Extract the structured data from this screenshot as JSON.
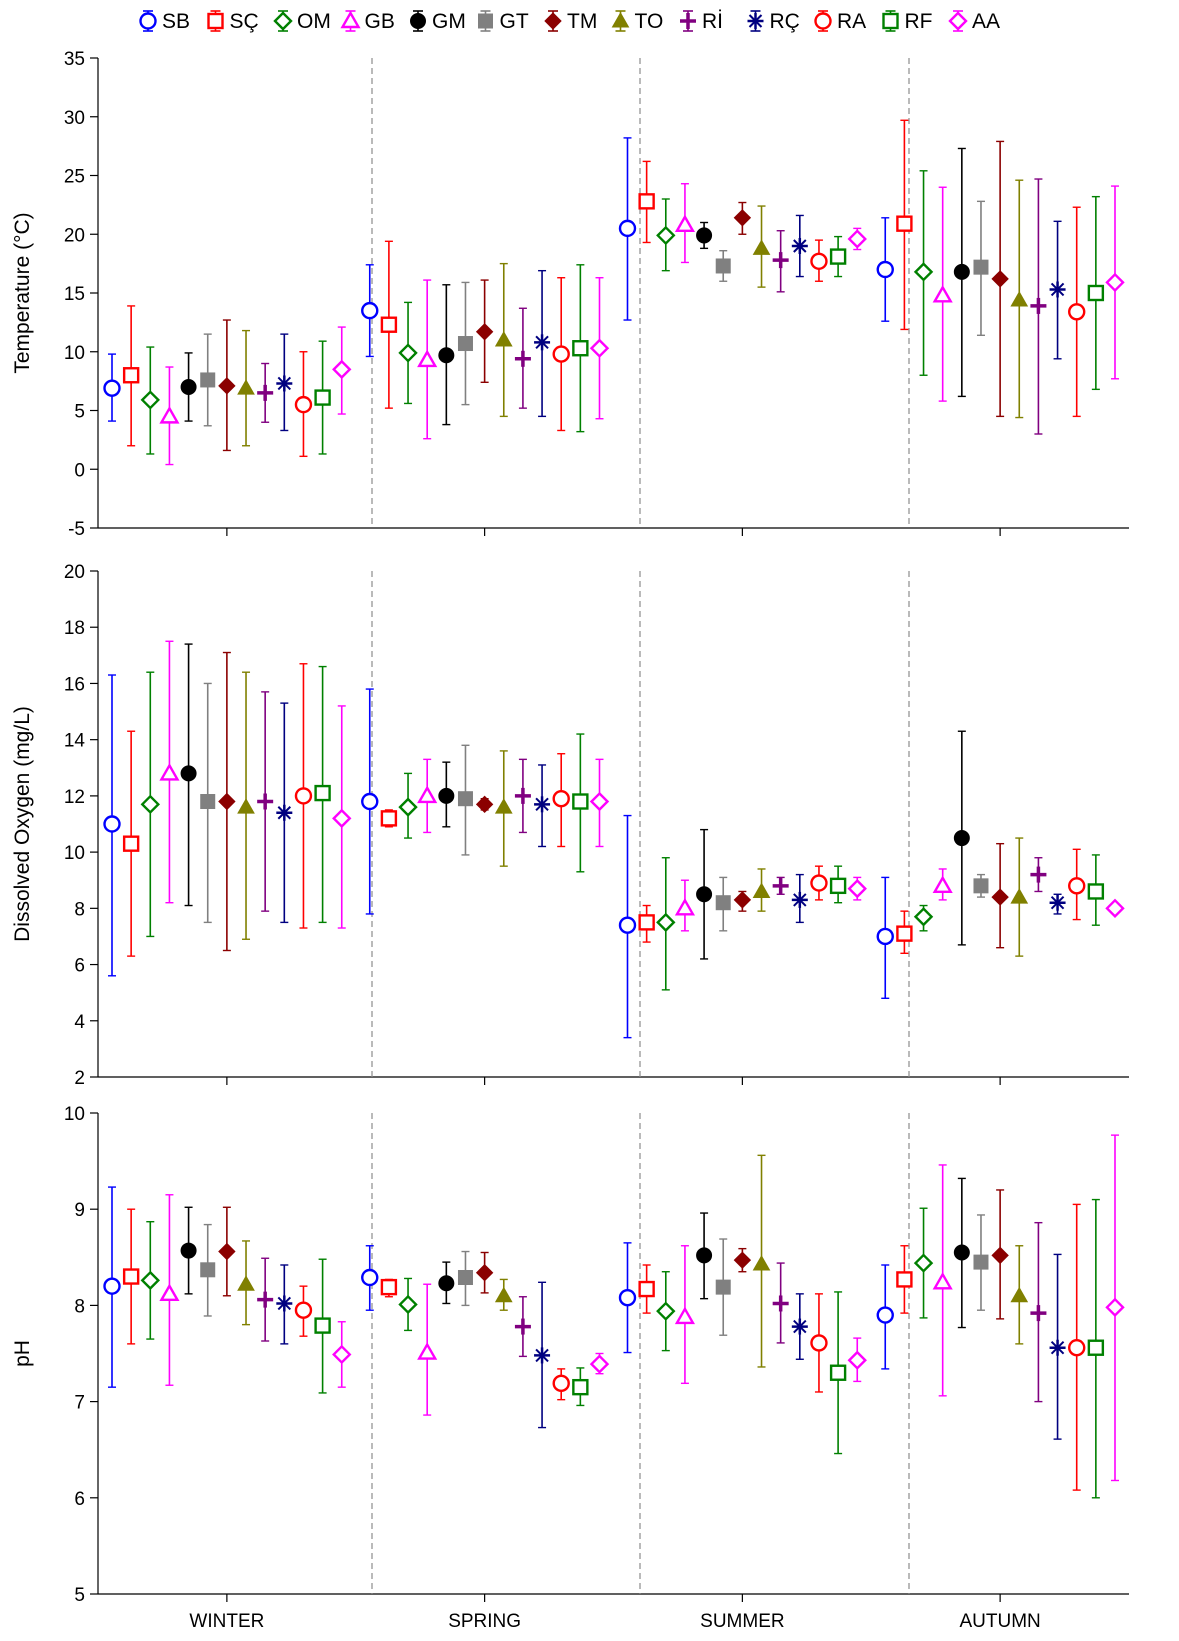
{
  "chart_data": {
    "type": "scatter",
    "subtype": "point-with-error-bars",
    "categories": [
      "WINTER",
      "SPRING",
      "SUMMER",
      "AUTUMN"
    ],
    "legend": {
      "placement": "top",
      "entries": [
        "SB",
        "SÇ",
        "OM",
        "GB",
        "GM",
        "GT",
        "TM",
        "TO",
        "Rİ",
        "RÇ",
        "RA",
        "RF",
        "AA"
      ]
    },
    "grid": false,
    "season_separators": "dashed",
    "series_style": [
      {
        "name": "SB",
        "color": "#0000ff",
        "marker": "circle-open"
      },
      {
        "name": "SÇ",
        "color": "#ff0000",
        "marker": "square-open"
      },
      {
        "name": "OM",
        "color": "#008000",
        "marker": "diamond-open"
      },
      {
        "name": "GB",
        "color": "#ff00ff",
        "marker": "triangle-open"
      },
      {
        "name": "GM",
        "color": "#000000",
        "marker": "circle-filled"
      },
      {
        "name": "GT",
        "color": "#808080",
        "marker": "square-filled"
      },
      {
        "name": "TM",
        "color": "#8b0000",
        "marker": "diamond-filled"
      },
      {
        "name": "TO",
        "color": "#808000",
        "marker": "triangle-filled"
      },
      {
        "name": "Rİ",
        "color": "#800080",
        "marker": "plus"
      },
      {
        "name": "RÇ",
        "color": "#000080",
        "marker": "asterisk"
      },
      {
        "name": "RA",
        "color": "#ff0000",
        "marker": "circle-open"
      },
      {
        "name": "RF",
        "color": "#008000",
        "marker": "square-open"
      },
      {
        "name": "AA",
        "color": "#ff00ff",
        "marker": "diamond-open"
      }
    ],
    "panels": [
      {
        "ylabel": "Temperature (°C)",
        "ylim": [
          -5,
          35
        ],
        "yticks": [
          -5,
          0,
          5,
          10,
          15,
          20,
          25,
          30,
          35
        ],
        "data": [
          [
            [
              6.9,
              4.1,
              9.8
            ],
            [
              13.5,
              9.6,
              17.4
            ],
            [
              20.5,
              12.7,
              28.2
            ],
            [
              17.0,
              12.6,
              21.4
            ]
          ],
          [
            [
              8.0,
              2.0,
              13.9
            ],
            [
              12.3,
              5.2,
              19.4
            ],
            [
              22.8,
              19.3,
              26.2
            ],
            [
              20.9,
              11.9,
              29.7
            ]
          ],
          [
            [
              5.9,
              1.3,
              10.4
            ],
            [
              9.9,
              5.6,
              14.2
            ],
            [
              19.9,
              16.9,
              23.0
            ],
            [
              16.8,
              8.0,
              25.4
            ]
          ],
          [
            [
              4.5,
              0.4,
              8.7
            ],
            [
              9.3,
              2.6,
              16.1
            ],
            [
              20.8,
              17.6,
              24.3
            ],
            [
              14.8,
              5.8,
              24.0
            ]
          ],
          [
            [
              7.0,
              4.1,
              9.9
            ],
            [
              9.7,
              3.8,
              15.7
            ],
            [
              19.9,
              18.8,
              21.0
            ],
            [
              16.8,
              6.2,
              27.3
            ]
          ],
          [
            [
              7.6,
              3.7,
              11.5
            ],
            [
              10.7,
              5.5,
              15.9
            ],
            [
              17.3,
              16.0,
              18.6
            ],
            [
              17.2,
              11.4,
              22.8
            ]
          ],
          [
            [
              7.1,
              1.6,
              12.7
            ],
            [
              11.7,
              7.4,
              16.1
            ],
            [
              21.4,
              20.0,
              22.7
            ],
            [
              16.2,
              4.5,
              27.9
            ]
          ],
          [
            [
              6.9,
              2.0,
              11.8
            ],
            [
              11.0,
              4.5,
              17.5
            ],
            [
              18.8,
              15.5,
              22.4
            ],
            [
              14.4,
              4.4,
              24.6
            ]
          ],
          [
            [
              6.5,
              4.0,
              9.0
            ],
            [
              9.4,
              5.2,
              13.7
            ],
            [
              17.8,
              15.1,
              20.3
            ],
            [
              13.9,
              3.0,
              24.7
            ]
          ],
          [
            [
              7.3,
              3.3,
              11.5
            ],
            [
              10.8,
              4.5,
              16.9
            ],
            [
              19.0,
              16.4,
              21.6
            ],
            [
              15.3,
              9.4,
              21.1
            ]
          ],
          [
            [
              5.5,
              1.1,
              10.0
            ],
            [
              9.8,
              3.3,
              16.3
            ],
            [
              17.7,
              16.0,
              19.5
            ],
            [
              13.4,
              4.5,
              22.3
            ]
          ],
          [
            [
              6.1,
              1.3,
              10.9
            ],
            [
              10.3,
              3.2,
              17.4
            ],
            [
              18.1,
              16.4,
              19.8
            ],
            [
              15.0,
              6.8,
              23.2
            ]
          ],
          [
            [
              8.5,
              4.7,
              12.1
            ],
            [
              10.3,
              4.3,
              16.3
            ],
            [
              19.6,
              18.7,
              20.5
            ],
            [
              15.9,
              7.7,
              24.1
            ]
          ]
        ]
      },
      {
        "ylabel": "Dissolved Oxygen (mg/L)",
        "ylim": [
          2,
          20
        ],
        "yticks": [
          2,
          4,
          6,
          8,
          10,
          12,
          14,
          16,
          18,
          20
        ],
        "data": [
          [
            [
              11.0,
              5.6,
              16.3
            ],
            [
              11.8,
              7.8,
              15.8
            ],
            [
              7.4,
              3.4,
              11.3
            ],
            [
              7.0,
              4.8,
              9.1
            ]
          ],
          [
            [
              10.3,
              6.3,
              14.3
            ],
            [
              11.2,
              10.9,
              11.5
            ],
            [
              7.5,
              6.8,
              8.1
            ],
            [
              7.1,
              6.4,
              7.9
            ]
          ],
          [
            [
              11.7,
              7.0,
              16.4
            ],
            [
              11.6,
              10.5,
              12.8
            ],
            [
              7.5,
              5.1,
              9.8
            ],
            [
              7.7,
              7.2,
              8.1
            ]
          ],
          [
            [
              12.8,
              8.2,
              17.5
            ],
            [
              12.0,
              10.7,
              13.3
            ],
            [
              8.0,
              7.2,
              9.0
            ],
            [
              8.8,
              8.3,
              9.4
            ]
          ],
          [
            [
              12.8,
              8.1,
              17.4
            ],
            [
              12.0,
              10.9,
              13.2
            ],
            [
              8.5,
              6.2,
              10.8
            ],
            [
              10.5,
              6.7,
              14.3
            ]
          ],
          [
            [
              11.8,
              7.5,
              16.0
            ],
            [
              11.9,
              9.9,
              13.8
            ],
            [
              8.2,
              7.2,
              9.1
            ],
            [
              8.8,
              8.4,
              9.2
            ]
          ],
          [
            [
              11.8,
              6.5,
              17.1
            ],
            [
              11.7,
              11.5,
              11.9
            ],
            [
              8.3,
              7.9,
              8.6
            ],
            [
              8.4,
              6.6,
              10.3
            ]
          ],
          [
            [
              11.6,
              6.9,
              16.4
            ],
            [
              11.6,
              9.5,
              13.6
            ],
            [
              8.6,
              7.9,
              9.4
            ],
            [
              8.4,
              6.3,
              10.5
            ]
          ],
          [
            [
              11.8,
              7.9,
              15.7
            ],
            [
              12.0,
              10.7,
              13.3
            ],
            [
              8.8,
              8.5,
              9.1
            ],
            [
              9.2,
              8.6,
              9.8
            ]
          ],
          [
            [
              11.4,
              7.5,
              15.3
            ],
            [
              11.7,
              10.2,
              13.1
            ],
            [
              8.3,
              7.5,
              9.2
            ],
            [
              8.2,
              7.8,
              8.5
            ]
          ],
          [
            [
              12.0,
              7.3,
              16.7
            ],
            [
              11.9,
              10.2,
              13.5
            ],
            [
              8.9,
              8.3,
              9.5
            ],
            [
              8.8,
              7.6,
              10.1
            ]
          ],
          [
            [
              12.1,
              7.5,
              16.6
            ],
            [
              11.8,
              9.3,
              14.2
            ],
            [
              8.8,
              8.2,
              9.5
            ],
            [
              8.6,
              7.4,
              9.9
            ]
          ],
          [
            [
              11.2,
              7.3,
              15.2
            ],
            [
              11.8,
              10.2,
              13.3
            ],
            [
              8.7,
              8.3,
              9.1
            ],
            [
              8.0,
              7.9,
              8.1
            ]
          ]
        ]
      },
      {
        "ylabel": "pH",
        "ylim": [
          5,
          10
        ],
        "yticks": [
          5,
          6,
          7,
          8,
          9,
          10
        ],
        "data": [
          [
            [
              8.2,
              7.15,
              9.23
            ],
            [
              8.29,
              7.95,
              8.62
            ],
            [
              8.08,
              7.51,
              8.65
            ],
            [
              7.9,
              7.34,
              8.42
            ]
          ],
          [
            [
              8.3,
              7.6,
              9.0
            ],
            [
              8.19,
              8.09,
              8.27
            ],
            [
              8.17,
              7.92,
              8.42
            ],
            [
              8.27,
              7.92,
              8.62
            ]
          ],
          [
            [
              8.26,
              7.65,
              8.87
            ],
            [
              8.01,
              7.74,
              8.28
            ],
            [
              7.94,
              7.53,
              8.35
            ],
            [
              8.44,
              7.87,
              9.01
            ]
          ],
          [
            [
              8.12,
              7.17,
              9.15
            ],
            [
              7.51,
              6.86,
              8.22
            ],
            [
              7.88,
              7.19,
              8.62
            ],
            [
              8.24,
              7.06,
              9.46
            ]
          ],
          [
            [
              8.57,
              8.12,
              9.02
            ],
            [
              8.23,
              8.02,
              8.45
            ],
            [
              8.52,
              8.07,
              8.96
            ],
            [
              8.55,
              7.77,
              9.32
            ]
          ],
          [
            [
              8.37,
              7.89,
              8.84
            ],
            [
              8.29,
              8.0,
              8.56
            ],
            [
              8.19,
              7.69,
              8.69
            ],
            [
              8.45,
              7.95,
              8.94
            ]
          ],
          [
            [
              8.56,
              8.1,
              9.02
            ],
            [
              8.34,
              8.13,
              8.55
            ],
            [
              8.47,
              8.35,
              8.59
            ],
            [
              8.52,
              7.86,
              9.2
            ]
          ],
          [
            [
              8.22,
              7.8,
              8.67
            ],
            [
              8.1,
              7.95,
              8.27
            ],
            [
              8.43,
              7.36,
              9.56
            ],
            [
              8.1,
              7.6,
              8.62
            ]
          ],
          [
            [
              8.06,
              7.63,
              8.49
            ],
            [
              7.78,
              7.47,
              8.09
            ],
            [
              8.02,
              7.61,
              8.44
            ],
            [
              7.92,
              7.0,
              8.86
            ]
          ],
          [
            [
              8.02,
              7.6,
              8.42
            ],
            [
              7.48,
              6.73,
              8.24
            ],
            [
              7.78,
              7.44,
              8.12
            ],
            [
              7.56,
              6.61,
              8.53
            ]
          ],
          [
            [
              7.95,
              7.68,
              8.2
            ],
            [
              7.19,
              7.02,
              7.34
            ],
            [
              7.61,
              7.1,
              8.12
            ],
            [
              7.56,
              6.08,
              9.05
            ]
          ],
          [
            [
              7.79,
              7.09,
              8.48
            ],
            [
              7.15,
              6.96,
              7.35
            ],
            [
              7.3,
              6.46,
              8.14
            ],
            [
              7.56,
              6.0,
              9.1
            ]
          ],
          [
            [
              7.49,
              7.15,
              7.83
            ],
            [
              7.39,
              7.29,
              7.5
            ],
            [
              7.43,
              7.21,
              7.66
            ],
            [
              7.98,
              6.18,
              9.77
            ]
          ]
        ]
      }
    ]
  }
}
